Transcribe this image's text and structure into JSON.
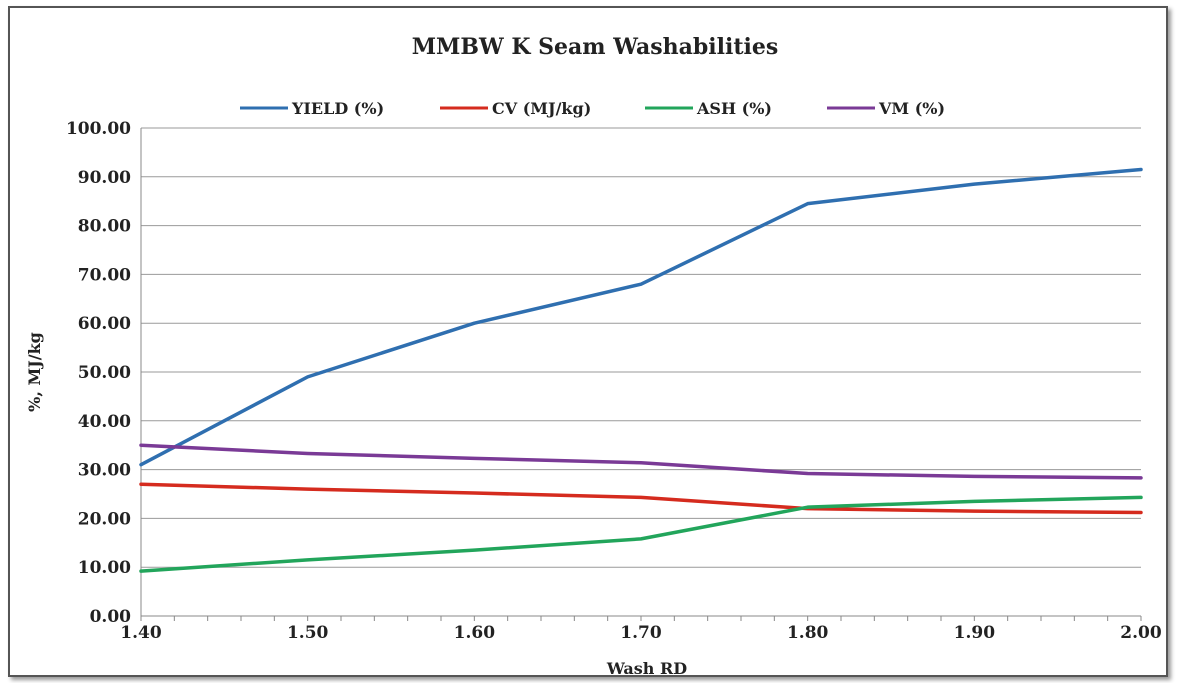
{
  "chart_data": {
    "type": "line",
    "title": "MMBW K Seam Washabilities",
    "xlabel": "Wash RD",
    "ylabel": "%, MJ/kg",
    "x": [
      1.4,
      1.5,
      1.6,
      1.7,
      1.8,
      1.9,
      2.0
    ],
    "x_ticks": [
      "1.40",
      "1.50",
      "1.60",
      "1.70",
      "1.80",
      "1.90",
      "2.00"
    ],
    "xlim": [
      1.4,
      2.0
    ],
    "ylim": [
      0,
      100
    ],
    "y_ticks": [
      "0.00",
      "10.00",
      "20.00",
      "30.00",
      "40.00",
      "50.00",
      "60.00",
      "70.00",
      "80.00",
      "90.00",
      "100.00"
    ],
    "grid": "horizontal",
    "legend_position": "top",
    "series": [
      {
        "name": "YIELD (%)",
        "color": "#2f6fb0",
        "values": [
          31.0,
          49.0,
          60.0,
          68.0,
          84.5,
          88.5,
          91.5
        ]
      },
      {
        "name": "CV (MJ/kg)",
        "color": "#d52b1e",
        "values": [
          27.0,
          26.0,
          25.2,
          24.3,
          22.0,
          21.5,
          21.2
        ]
      },
      {
        "name": "ASH (%)",
        "color": "#22a55b",
        "values": [
          9.2,
          11.5,
          13.5,
          15.8,
          22.3,
          23.5,
          24.3
        ]
      },
      {
        "name": "VM (%)",
        "color": "#7a3a96",
        "values": [
          35.0,
          33.3,
          32.3,
          31.4,
          29.2,
          28.6,
          28.3
        ]
      }
    ]
  }
}
